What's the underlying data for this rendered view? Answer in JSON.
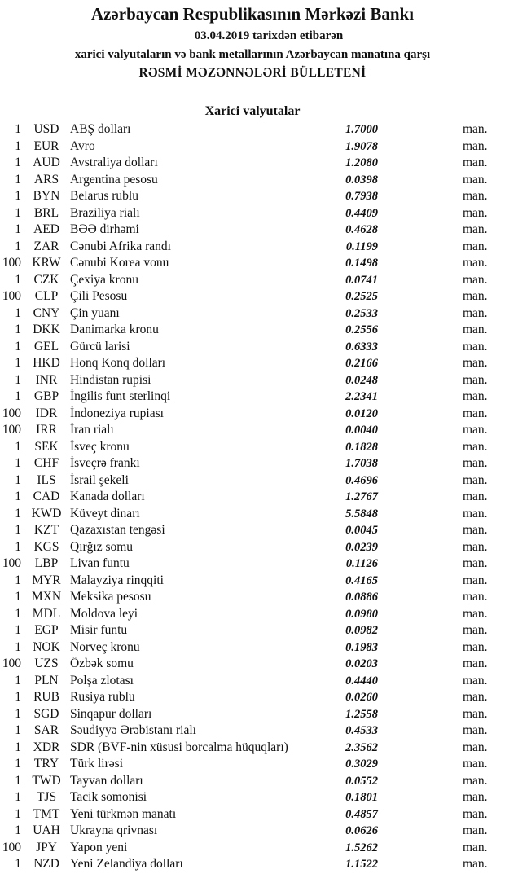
{
  "header": {
    "bank": "Azərbaycan Respublikasının Mərkəzi Bankı",
    "date_line": "03.04.2019  tarixdən etibarən",
    "subtitle": "xarici valyutaların və bank metallarının Azərbaycan manatına qarşı",
    "bulletin": "RƏSMİ MƏZƏNNƏLƏRİ BÜLLETENİ",
    "section": "Xarici valyutalar"
  },
  "rates": [
    {
      "amount": "1",
      "code": "USD",
      "name": "ABŞ dolları",
      "rate": "1.7000",
      "unit": "man."
    },
    {
      "amount": "1",
      "code": "EUR",
      "name": "Avro",
      "rate": "1.9078",
      "unit": "man."
    },
    {
      "amount": "1",
      "code": "AUD",
      "name": "Avstraliya dolları",
      "rate": "1.2080",
      "unit": "man."
    },
    {
      "amount": "1",
      "code": "ARS",
      "name": "Argentina pesosu",
      "rate": "0.0398",
      "unit": "man."
    },
    {
      "amount": "1",
      "code": "BYN",
      "name": "Belarus rublu",
      "rate": "0.7938",
      "unit": "man."
    },
    {
      "amount": "1",
      "code": "BRL",
      "name": "Braziliya rialı",
      "rate": "0.4409",
      "unit": "man."
    },
    {
      "amount": "1",
      "code": "AED",
      "name": "BƏƏ dirhəmi",
      "rate": "0.4628",
      "unit": "man."
    },
    {
      "amount": "1",
      "code": "ZAR",
      "name": "Cənubi Afrika randı",
      "rate": "0.1199",
      "unit": "man."
    },
    {
      "amount": "100",
      "code": "KRW",
      "name": "Cənubi Korea vonu",
      "rate": "0.1498",
      "unit": "man."
    },
    {
      "amount": "1",
      "code": "CZK",
      "name": "Çexiya kronu",
      "rate": "0.0741",
      "unit": "man."
    },
    {
      "amount": "100",
      "code": "CLP",
      "name": "Çili Pesosu",
      "rate": "0.2525",
      "unit": "man."
    },
    {
      "amount": "1",
      "code": "CNY",
      "name": "Çin yuanı",
      "rate": "0.2533",
      "unit": "man."
    },
    {
      "amount": "1",
      "code": "DKK",
      "name": "Danimarka kronu",
      "rate": "0.2556",
      "unit": "man."
    },
    {
      "amount": "1",
      "code": "GEL",
      "name": "Gürcü larisi",
      "rate": "0.6333",
      "unit": "man."
    },
    {
      "amount": "1",
      "code": "HKD",
      "name": "Honq Konq dolları",
      "rate": "0.2166",
      "unit": "man."
    },
    {
      "amount": "1",
      "code": "INR",
      "name": "Hindistan rupisi",
      "rate": "0.0248",
      "unit": "man."
    },
    {
      "amount": "1",
      "code": "GBP",
      "name": "İngilis funt sterlinqi",
      "rate": "2.2341",
      "unit": "man."
    },
    {
      "amount": "100",
      "code": "IDR",
      "name": "İndoneziya rupiası",
      "rate": "0.0120",
      "unit": "man."
    },
    {
      "amount": "100",
      "code": "IRR",
      "name": "İran rialı",
      "rate": "0.0040",
      "unit": "man."
    },
    {
      "amount": "1",
      "code": "SEK",
      "name": "İsveç kronu",
      "rate": "0.1828",
      "unit": "man."
    },
    {
      "amount": "1",
      "code": "CHF",
      "name": "İsveçrə frankı",
      "rate": "1.7038",
      "unit": "man."
    },
    {
      "amount": "1",
      "code": "ILS",
      "name": "İsrail şekeli",
      "rate": "0.4696",
      "unit": "man."
    },
    {
      "amount": "1",
      "code": "CAD",
      "name": "Kanada dolları",
      "rate": "1.2767",
      "unit": "man."
    },
    {
      "amount": "1",
      "code": "KWD",
      "name": "Küveyt dinarı",
      "rate": "5.5848",
      "unit": "man."
    },
    {
      "amount": "1",
      "code": "KZT",
      "name": "Qazaxıstan tengəsi",
      "rate": "0.0045",
      "unit": "man."
    },
    {
      "amount": "1",
      "code": "KGS",
      "name": "Qırğız somu",
      "rate": "0.0239",
      "unit": "man."
    },
    {
      "amount": "100",
      "code": "LBP",
      "name": "Livan funtu",
      "rate": "0.1126",
      "unit": "man."
    },
    {
      "amount": "1",
      "code": "MYR",
      "name": "Malayziya rinqqiti",
      "rate": "0.4165",
      "unit": "man."
    },
    {
      "amount": "1",
      "code": "MXN",
      "name": "Meksika pesosu",
      "rate": "0.0886",
      "unit": "man."
    },
    {
      "amount": "1",
      "code": "MDL",
      "name": "Moldova leyi",
      "rate": "0.0980",
      "unit": "man."
    },
    {
      "amount": "1",
      "code": "EGP",
      "name": "Misir funtu",
      "rate": "0.0982",
      "unit": "man."
    },
    {
      "amount": "1",
      "code": "NOK",
      "name": "Norveç kronu",
      "rate": "0.1983",
      "unit": "man."
    },
    {
      "amount": "100",
      "code": "UZS",
      "name": "Özbək somu",
      "rate": "0.0203",
      "unit": "man."
    },
    {
      "amount": "1",
      "code": "PLN",
      "name": "Polşa zlotası",
      "rate": "0.4440",
      "unit": "man."
    },
    {
      "amount": "1",
      "code": "RUB",
      "name": "Rusiya rublu",
      "rate": "0.0260",
      "unit": "man."
    },
    {
      "amount": "1",
      "code": "SGD",
      "name": "Sinqapur dolları",
      "rate": "1.2558",
      "unit": "man."
    },
    {
      "amount": "1",
      "code": "SAR",
      "name": "Səudiyyə Ərəbistanı rialı",
      "rate": "0.4533",
      "unit": "man."
    },
    {
      "amount": "1",
      "code": "XDR",
      "name": "SDR (BVF-nin xüsusi borcalma hüquqları)",
      "rate": "2.3562",
      "unit": "man."
    },
    {
      "amount": "1",
      "code": "TRY",
      "name": "Türk lirəsi",
      "rate": "0.3029",
      "unit": "man."
    },
    {
      "amount": "1",
      "code": "TWD",
      "name": "Tayvan dolları",
      "rate": "0.0552",
      "unit": "man."
    },
    {
      "amount": "1",
      "code": "TJS",
      "name": "Tacik somonisi",
      "rate": "0.1801",
      "unit": "man."
    },
    {
      "amount": "1",
      "code": "TMT",
      "name": "Yeni türkmən manatı",
      "rate": "0.4857",
      "unit": "man."
    },
    {
      "amount": "1",
      "code": "UAH",
      "name": "Ukrayna qrivnası",
      "rate": "0.0626",
      "unit": "man."
    },
    {
      "amount": "100",
      "code": "JPY",
      "name": "Yapon yeni",
      "rate": "1.5262",
      "unit": "man."
    },
    {
      "amount": "1",
      "code": "NZD",
      "name": "Yeni Zelandiya dolları",
      "rate": "1.1522",
      "unit": "man."
    }
  ]
}
